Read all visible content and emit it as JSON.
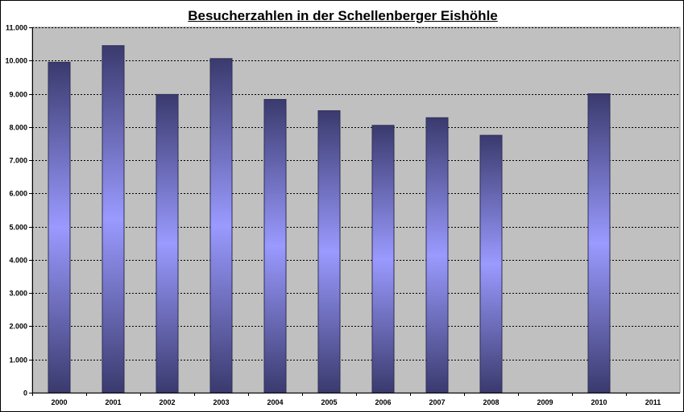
{
  "chart_data": {
    "type": "bar",
    "title": "Besucherzahlen in der Schellenberger Eishöhle",
    "xlabel": "",
    "ylabel": "",
    "categories": [
      "2000",
      "2001",
      "2002",
      "2003",
      "2004",
      "2005",
      "2006",
      "2007",
      "2008",
      "2009",
      "2010",
      "2011"
    ],
    "values": [
      9950,
      10450,
      8980,
      10060,
      8830,
      8490,
      8050,
      8280,
      7750,
      null,
      9000,
      null
    ],
    "ylim": [
      0,
      11000
    ],
    "y_ticks": [
      0,
      1000,
      2000,
      3000,
      4000,
      5000,
      6000,
      7000,
      8000,
      9000,
      10000,
      11000
    ],
    "y_tick_labels": [
      "0",
      "1.000",
      "2.000",
      "3.000",
      "4.000",
      "5.000",
      "6.000",
      "7.000",
      "8.000",
      "9.000",
      "10.000",
      "11.000"
    ],
    "grid": true,
    "legend": "none",
    "colors": {
      "plot_background": "#c0c0c0",
      "bar_edge": "#2f2f58",
      "bar_dark": "#3a3a6e",
      "bar_light": "#9a9aff",
      "gridline": "#000000"
    }
  }
}
